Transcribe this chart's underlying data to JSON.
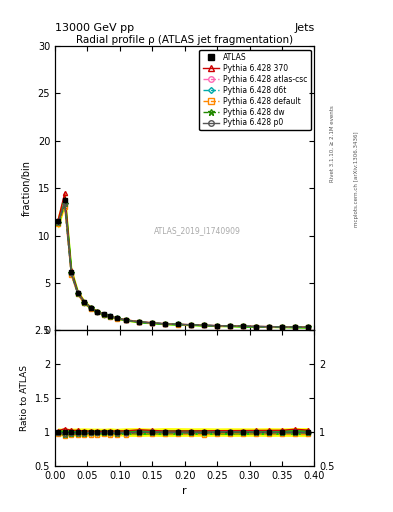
{
  "title": "Radial profile ρ (ATLAS jet fragmentation)",
  "header_left": "13000 GeV pp",
  "header_right": "Jets",
  "ylabel_main": "fraction/bin",
  "ylabel_ratio": "Ratio to ATLAS",
  "xlabel": "r",
  "watermark": "ATLAS_2019_I1740909",
  "rivet_text": "Rivet 3.1.10, ≥ 2.1M events",
  "mcplots_text": "mcplots.cern.ch [arXiv:1306.3436]",
  "r_values": [
    0.005,
    0.015,
    0.025,
    0.035,
    0.045,
    0.055,
    0.065,
    0.075,
    0.085,
    0.095,
    0.11,
    0.13,
    0.15,
    0.17,
    0.19,
    0.21,
    0.23,
    0.25,
    0.27,
    0.29,
    0.31,
    0.33,
    0.35,
    0.37,
    0.39
  ],
  "atlas_data": [
    11.5,
    13.8,
    6.2,
    4.0,
    3.0,
    2.4,
    2.0,
    1.7,
    1.5,
    1.3,
    1.1,
    0.9,
    0.8,
    0.7,
    0.65,
    0.6,
    0.55,
    0.5,
    0.48,
    0.45,
    0.42,
    0.4,
    0.38,
    0.36,
    0.35
  ],
  "atlas_err": [
    0.3,
    0.3,
    0.15,
    0.1,
    0.08,
    0.06,
    0.05,
    0.04,
    0.04,
    0.03,
    0.03,
    0.025,
    0.02,
    0.02,
    0.018,
    0.016,
    0.015,
    0.013,
    0.013,
    0.012,
    0.011,
    0.011,
    0.01,
    0.01,
    0.01
  ],
  "p370_data": [
    11.7,
    14.5,
    6.35,
    4.1,
    3.05,
    2.43,
    2.02,
    1.72,
    1.52,
    1.32,
    1.12,
    0.93,
    0.82,
    0.71,
    0.66,
    0.61,
    0.56,
    0.51,
    0.49,
    0.46,
    0.43,
    0.41,
    0.39,
    0.375,
    0.36
  ],
  "atlas_csc_data": [
    11.3,
    13.2,
    6.0,
    3.88,
    2.93,
    2.35,
    1.96,
    1.67,
    1.47,
    1.27,
    1.07,
    0.89,
    0.79,
    0.69,
    0.64,
    0.59,
    0.54,
    0.495,
    0.475,
    0.445,
    0.415,
    0.395,
    0.375,
    0.355,
    0.345
  ],
  "d6t_data": [
    11.4,
    13.4,
    6.05,
    3.92,
    2.95,
    2.37,
    1.97,
    1.68,
    1.48,
    1.28,
    1.08,
    0.895,
    0.795,
    0.695,
    0.645,
    0.595,
    0.545,
    0.498,
    0.478,
    0.447,
    0.418,
    0.397,
    0.377,
    0.358,
    0.347
  ],
  "default_data": [
    11.2,
    13.0,
    5.9,
    3.82,
    2.88,
    2.3,
    1.92,
    1.64,
    1.44,
    1.25,
    1.06,
    0.88,
    0.78,
    0.68,
    0.63,
    0.58,
    0.53,
    0.488,
    0.468,
    0.438,
    0.408,
    0.388,
    0.368,
    0.348,
    0.338
  ],
  "dw_data": [
    11.35,
    13.3,
    6.02,
    3.9,
    2.93,
    2.36,
    1.96,
    1.67,
    1.47,
    1.27,
    1.08,
    0.892,
    0.792,
    0.692,
    0.642,
    0.592,
    0.542,
    0.496,
    0.476,
    0.446,
    0.416,
    0.396,
    0.376,
    0.356,
    0.346
  ],
  "p0_data": [
    11.4,
    13.5,
    6.08,
    3.95,
    2.97,
    2.38,
    1.98,
    1.69,
    1.49,
    1.29,
    1.09,
    0.898,
    0.798,
    0.698,
    0.648,
    0.598,
    0.548,
    0.501,
    0.481,
    0.45,
    0.42,
    0.399,
    0.379,
    0.36,
    0.348
  ],
  "color_atlas": "#000000",
  "color_p370": "#cc0000",
  "color_atlas_csc": "#ff69b4",
  "color_d6t": "#00aaaa",
  "color_default": "#ff8800",
  "color_dw": "#228800",
  "color_p0": "#555555",
  "band_green": "#00cc00",
  "band_yellow": "#ffff00",
  "ylim_main": [
    0,
    30
  ],
  "ylim_ratio": [
    0.5,
    2.5
  ],
  "xlim": [
    0.0,
    0.4
  ]
}
